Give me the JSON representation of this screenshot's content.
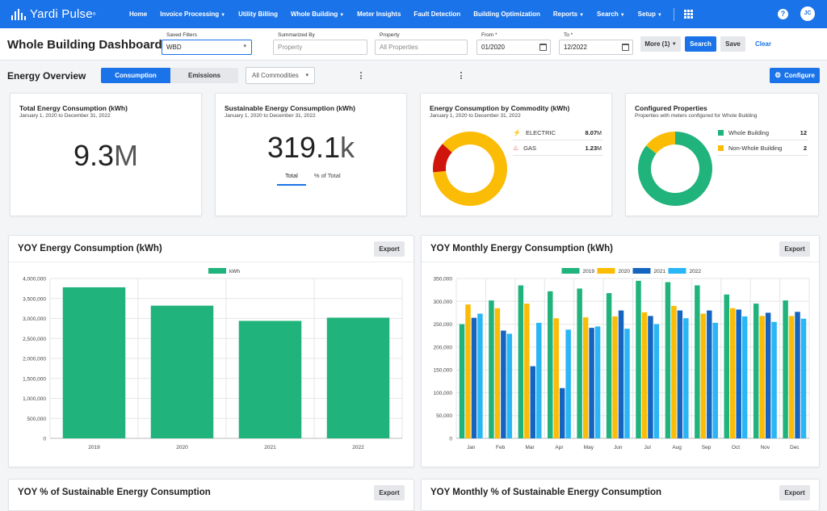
{
  "nav": {
    "brand": "Yardi Pulse",
    "items": [
      {
        "label": "Home",
        "caret": false
      },
      {
        "label": "Invoice Processing",
        "caret": true
      },
      {
        "label": "Utility Billing",
        "caret": false
      },
      {
        "label": "Whole Building",
        "caret": true
      },
      {
        "label": "Meter Insights",
        "caret": false
      },
      {
        "label": "Fault Detection",
        "caret": false
      },
      {
        "label": "Building Optimization",
        "caret": false
      },
      {
        "label": "Reports",
        "caret": true
      },
      {
        "label": "Search",
        "caret": true
      },
      {
        "label": "Setup",
        "caret": true
      }
    ],
    "help": "?",
    "user_initials": "JC"
  },
  "filters": {
    "page_title": "Whole Building Dashboard",
    "saved_filters_label": "Saved Filters",
    "saved_filters_value": "WBD",
    "summarized_by_label": "Summarized By",
    "summarized_by_placeholder": "Property",
    "property_label": "Property",
    "property_placeholder": "All Properties",
    "from_label": "From *",
    "from_value": "01/2020",
    "to_label": "To *",
    "to_value": "12/2022",
    "more_label": "More (1)",
    "search_label": "Search",
    "save_label": "Save",
    "clear_label": "Clear"
  },
  "overview": {
    "title": "Energy Overview",
    "toggle_consumption": "Consumption",
    "toggle_emissions": "Emissions",
    "commodities": "All Commodities",
    "configure": "Configure"
  },
  "kpis": {
    "total": {
      "title": "Total Energy Consumption (kWh)",
      "subtitle": "January 1, 2020 to December 31, 2022",
      "value": "9.3",
      "unit": "M"
    },
    "sustainable": {
      "title": "Sustainable Energy Consumption (kWh)",
      "subtitle": "January 1, 2020 to December 31, 2022",
      "value": "319.1",
      "unit": "k",
      "tab_total": "Total",
      "tab_percent": "% of Total"
    },
    "by_commodity": {
      "title": "Energy Consumption by Commodity (kWh)",
      "subtitle": "January 1, 2020 to December 31, 2022",
      "items": [
        {
          "label": "ELECTRIC",
          "value": "8.07",
          "unit": "M",
          "fraction": 0.868,
          "color": "#fbbc05",
          "icon": "lightning-icon"
        },
        {
          "label": "GAS",
          "value": "1.23",
          "unit": "M",
          "fraction": 0.132,
          "color": "#d0160c",
          "icon": "flame-icon"
        }
      ]
    },
    "configured": {
      "title": "Configured Properties",
      "subtitle": "Properties with meters configured for Whole Building",
      "items": [
        {
          "label": "Whole Building",
          "count": "12",
          "color": "#20b37b"
        },
        {
          "label": "Non-Whole Building",
          "count": "2",
          "color": "#fbbc05"
        }
      ]
    }
  },
  "charts": {
    "yoy_title": "YOY Energy Consumption (kWh)",
    "monthly_title": "YOY Monthly Energy Consumption (kWh)",
    "pct_title": "YOY % of Sustainable Energy Consumption",
    "monthly_pct_title": "YOY Monthly % of Sustainable Energy Consumption",
    "export_label": "Export"
  },
  "chart_data": [
    {
      "type": "bar",
      "title": "YOY Energy Consumption (kWh)",
      "categories": [
        "2019",
        "2020",
        "2021",
        "2022"
      ],
      "series": [
        {
          "name": "kWh",
          "values": [
            3780000,
            3320000,
            2940000,
            3020000
          ],
          "color": "#20b37b"
        }
      ],
      "ylim": [
        0,
        4000000
      ],
      "yticks": [
        "4,000,000",
        "3,500,000",
        "3,000,000",
        "2,500,000",
        "2,000,000",
        "1,500,000",
        "1,000,000",
        "500,000",
        "0"
      ],
      "grid": true,
      "legend": "top-center"
    },
    {
      "type": "bar",
      "title": "YOY Monthly Energy Consumption (kWh)",
      "categories": [
        "Jan",
        "Feb",
        "Mar",
        "Apr",
        "May",
        "Jun",
        "Jul",
        "Aug",
        "Sep",
        "Oct",
        "Nov",
        "Dec"
      ],
      "series": [
        {
          "name": "2019",
          "color": "#20b37b",
          "values": [
            250000,
            302000,
            335000,
            322000,
            328000,
            318000,
            345000,
            342000,
            335000,
            315000,
            295000,
            302000
          ]
        },
        {
          "name": "2020",
          "color": "#fbbc05",
          "values": [
            293000,
            285000,
            295000,
            263000,
            265000,
            267000,
            276000,
            290000,
            273000,
            285000,
            268000,
            268000
          ]
        },
        {
          "name": "2021",
          "color": "#1565c0",
          "values": [
            264000,
            236000,
            158000,
            110000,
            242000,
            280000,
            268000,
            280000,
            280000,
            282000,
            275000,
            277000
          ]
        },
        {
          "name": "2022",
          "color": "#29b6f6",
          "values": [
            273000,
            229000,
            253000,
            238000,
            245000,
            240000,
            250000,
            263000,
            253000,
            267000,
            255000,
            262000
          ]
        }
      ],
      "ylim": [
        0,
        350000
      ],
      "yticks": [
        "350,000",
        "300,000",
        "250,000",
        "200,000",
        "150,000",
        "100,000",
        "50,000",
        "0"
      ],
      "grid": true,
      "legend": "top-center"
    }
  ]
}
